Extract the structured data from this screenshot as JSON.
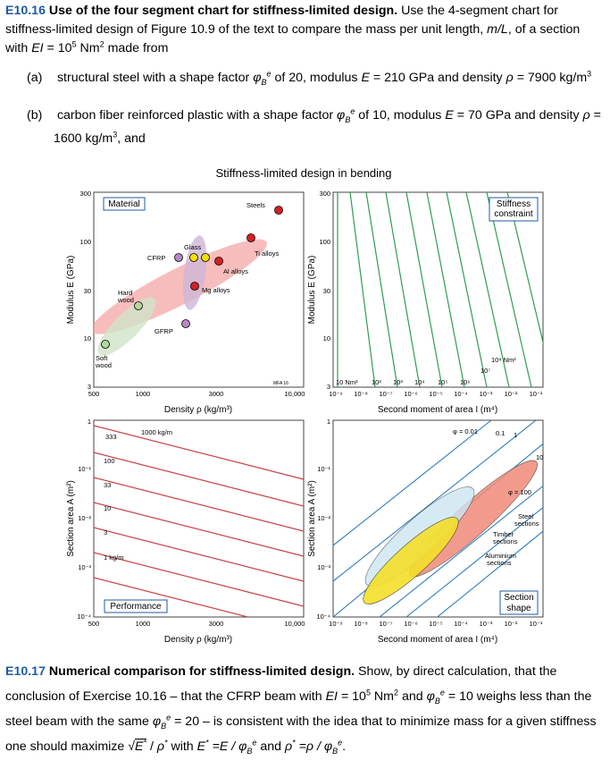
{
  "ex16": {
    "number": "E10.16",
    "title": "Use of the four segment chart for stiffness-limited design.",
    "body_1": "Use the 4-segment chart for stiffness-limited design of Figure 10.9 of the text to compare the mass per unit length,",
    "mL": "m/L",
    "body_2": ", of a section with",
    "EI": "EI",
    "body_3": "= 10",
    "exp5": "5",
    "body_4": "Nm",
    "exp2": "2",
    "body_5": "made from",
    "a_label": "(a)",
    "a_text_1": "structural steel with a shape factor",
    "a_text_2": "of 20, modulus",
    "a_text_3": "= 210 GPa and density",
    "a_text_4": "= 7900 kg/m",
    "b_label": "(b)",
    "b_text_1": "carbon fiber reinforced plastic with a shape factor",
    "b_text_2": "of 10, modulus",
    "b_text_3": "= 70 GPa and density",
    "b_text_4": "=",
    "b_text_5": "1600 kg/m",
    "b_text_6": ", and"
  },
  "figure": {
    "title": "Stiffness-limited design in bending",
    "modulus_label": "Modulus E (GPa)",
    "density_label": "Density ρ (kg/m³)",
    "second_moment_label": "Second moment of area I (m⁴)",
    "section_area_label": "Section area A (m²)",
    "box_material": "Material",
    "box_stiffness": [
      "Stiffness",
      "constraint"
    ],
    "box_performance": "Performance",
    "box_section": [
      "Section",
      "shape"
    ],
    "materials": [
      "Steels",
      "Ti alloys",
      "Al alloys",
      "Mg alloys",
      "Glass",
      "CFRP",
      "GFRP",
      "Hard",
      "wood",
      "Soft",
      "wood"
    ],
    "mfa": "MFA 16",
    "ei_labels": [
      "10 Nm²",
      "10²",
      "10³",
      "10⁴",
      "10⁵",
      "10⁶",
      "10⁷",
      "10⁸ Nm²"
    ],
    "area_labels": [
      "333",
      "100",
      "33",
      "10",
      "3",
      "1 kg/m"
    ],
    "perf_top": "1000 kg/m",
    "phi_labels": [
      "φ = 0.01",
      "0.1",
      "1",
      "10",
      "φ = 100"
    ],
    "section_names": [
      "Steel",
      "sections",
      "Timber",
      "sections",
      "Aluminium",
      "sections"
    ],
    "ticks_E": [
      "300",
      "100",
      "30",
      "10",
      "3"
    ],
    "ticks_rho": [
      "500",
      "1000",
      "3000",
      "10,000"
    ],
    "ticks_A": [
      "1",
      "10⁻¹",
      "10⁻²",
      "10⁻³",
      "10⁻⁴"
    ],
    "ticks_I": [
      "10⁻⁹",
      "10⁻⁸",
      "10⁻⁷",
      "10⁻⁶",
      "10⁻⁵",
      "10⁻⁴",
      "10⁻³",
      "10⁻²",
      "10⁻¹"
    ]
  },
  "ex17": {
    "number": "E10.17",
    "title": "Numerical comparison for stiffness-limited design.",
    "t1": "Show, by direct calculation, that the conclusion of Exercise 10.16 – that the CFRP beam with",
    "t2": "= 10",
    "t3": "Nm",
    "t4": "and",
    "t5": "= 10 weighs less than the steel beam with the same",
    "t6": "= 20 – is consistent with the idea that to minimize mass for a given stiffness one should maximize",
    "t7": "with",
    "t8": "and"
  }
}
